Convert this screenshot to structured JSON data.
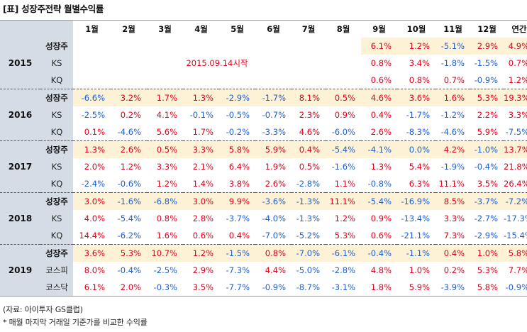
{
  "title": "[표] 성장주전략 월별수익률",
  "months": [
    "1월",
    "2월",
    "3월",
    "4월",
    "5월",
    "6월",
    "7월",
    "8월",
    "9월",
    "10월",
    "11월",
    "12월",
    "연간"
  ],
  "groups": [
    {
      "year": "2015",
      "rows": [
        {
          "label": "성장주",
          "strong": true,
          "note": "",
          "values": [
            "",
            "",
            "",
            "",
            "",
            "",
            "",
            "",
            "6.1%",
            "1.2%",
            "-5.1%",
            "2.9%",
            "4.9%"
          ]
        },
        {
          "label": "KS",
          "strong": false,
          "note": "2015.09.14시작",
          "values": [
            "",
            "",
            "",
            "",
            "",
            "",
            "",
            "",
            "0.8%",
            "3.4%",
            "-1.8%",
            "-1.5%",
            "0.7%"
          ]
        },
        {
          "label": "KQ",
          "strong": false,
          "note": "",
          "values": [
            "",
            "",
            "",
            "",
            "",
            "",
            "",
            "",
            "0.6%",
            "0.8%",
            "0.7%",
            "-0.9%",
            "1.2%"
          ]
        }
      ]
    },
    {
      "year": "2016",
      "rows": [
        {
          "label": "성장주",
          "strong": true,
          "values": [
            "-6.6%",
            "3.2%",
            "1.7%",
            "1.3%",
            "-2.9%",
            "-1.7%",
            "8.1%",
            "0.5%",
            "4.6%",
            "3.6%",
            "1.6%",
            "5.3%",
            "19.3%"
          ]
        },
        {
          "label": "KS",
          "strong": false,
          "values": [
            "-2.5%",
            "0.2%",
            "4.1%",
            "-0.1%",
            "-0.5%",
            "-0.7%",
            "2.3%",
            "0.9%",
            "0.4%",
            "-1.7%",
            "-1.2%",
            "2.2%",
            "3.3%"
          ]
        },
        {
          "label": "KQ",
          "strong": false,
          "values": [
            "0.1%",
            "-4.6%",
            "5.6%",
            "1.7%",
            "-0.2%",
            "-3.3%",
            "4.6%",
            "-6.0%",
            "2.6%",
            "-8.3%",
            "-4.6%",
            "5.9%",
            "-7.5%"
          ]
        }
      ]
    },
    {
      "year": "2017",
      "rows": [
        {
          "label": "성장주",
          "strong": true,
          "values": [
            "1.3%",
            "2.6%",
            "0.5%",
            "3.3%",
            "5.8%",
            "5.9%",
            "0.4%",
            "-5.4%",
            "-4.1%",
            "0.0%",
            "4.2%",
            "-1.0%",
            "13.7%"
          ]
        },
        {
          "label": "KS",
          "strong": false,
          "values": [
            "2.0%",
            "1.2%",
            "3.3%",
            "2.1%",
            "6.4%",
            "1.9%",
            "0.5%",
            "-1.6%",
            "1.3%",
            "5.4%",
            "-1.9%",
            "-0.4%",
            "21.8%"
          ]
        },
        {
          "label": "KQ",
          "strong": false,
          "values": [
            "-2.4%",
            "-0.6%",
            "1.2%",
            "1.4%",
            "3.8%",
            "2.6%",
            "-2.8%",
            "1.1%",
            "-0.8%",
            "6.3%",
            "11.1%",
            "3.5%",
            "26.4%"
          ]
        }
      ]
    },
    {
      "year": "2018",
      "rows": [
        {
          "label": "성장주",
          "strong": true,
          "values": [
            "3.0%",
            "-1.6%",
            "-6.8%",
            "3.0%",
            "9.9%",
            "-3.6%",
            "-1.3%",
            "11.1%",
            "-5.4%",
            "-16.9%",
            "8.5%",
            "-3.7%",
            "-7.2%"
          ]
        },
        {
          "label": "KS",
          "strong": false,
          "values": [
            "4.0%",
            "-5.4%",
            "0.8%",
            "2.8%",
            "-3.7%",
            "-4.0%",
            "-1.3%",
            "1.2%",
            "0.9%",
            "-13.4%",
            "3.3%",
            "-2.7%",
            "-17.3%"
          ]
        },
        {
          "label": "KQ",
          "strong": false,
          "values": [
            "14.4%",
            "-6.2%",
            "1.6%",
            "0.6%",
            "0.4%",
            "-7.0%",
            "-5.2%",
            "5.3%",
            "0.6%",
            "-21.1%",
            "7.3%",
            "-2.9%",
            "-15.4%"
          ]
        }
      ]
    },
    {
      "year": "2019",
      "rows": [
        {
          "label": "성장주",
          "strong": true,
          "values": [
            "3.6%",
            "5.3%",
            "10.7%",
            "1.2%",
            "-1.5%",
            "0.8%",
            "-7.0%",
            "-6.1%",
            "-0.4%",
            "-1.1%",
            "0.4%",
            "1.0%",
            "5.8%"
          ]
        },
        {
          "label": "코스피",
          "strong": false,
          "values": [
            "8.0%",
            "-0.4%",
            "-2.5%",
            "2.9%",
            "-7.3%",
            "4.4%",
            "-5.0%",
            "-2.8%",
            "4.8%",
            "1.0%",
            "0.2%",
            "5.3%",
            "7.7%"
          ]
        },
        {
          "label": "코스닥",
          "strong": false,
          "values": [
            "6.1%",
            "2.0%",
            "-0.3%",
            "3.5%",
            "-7.7%",
            "-0.9%",
            "-8.7%",
            "-3.1%",
            "1.8%",
            "5.9%",
            "-3.9%",
            "5.8%",
            "-0.9%"
          ]
        }
      ]
    }
  ],
  "footer": {
    "source": "(자료: 아이투자 GS클럽)",
    "note": "* 매월 마지막 거래일 기준가를 비교한 수익률"
  },
  "colors": {
    "positive": "#e0001b",
    "negative": "#1f5fd0",
    "highlight": "#fdf2d6",
    "label_bg": "#d6dce5"
  }
}
